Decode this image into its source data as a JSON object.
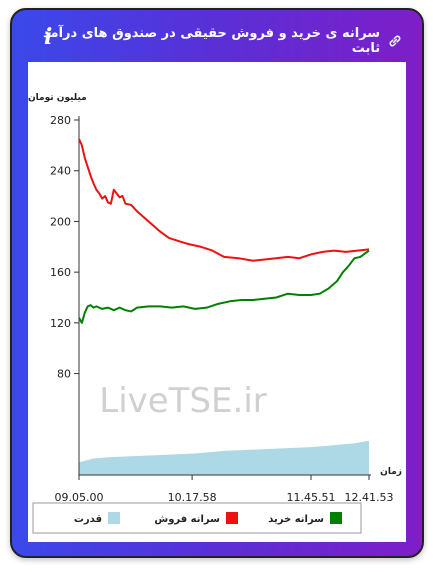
{
  "header": {
    "title": "سرانه ی خرید و فروش حقیقی در صندوق های درآمد ثابت",
    "info_icon": "i",
    "link_icon_name": "link-icon"
  },
  "watermark": "LiveTSE.ir",
  "chart_data": {
    "type": "line",
    "ylabel": "میلیون تومان",
    "xlabel": "زمان",
    "ylim": [
      0,
      280
    ],
    "y_ticks": [
      80,
      120,
      160,
      200,
      240,
      280
    ],
    "x_tick_labels": [
      "09.05.00",
      "10.17.58",
      "11.45.51",
      "12.41.53"
    ],
    "x_tick_positions": [
      0,
      0.39,
      0.8,
      1.0
    ],
    "grid": false,
    "legend_position": "bottom",
    "series": [
      {
        "name": "سرانه فروش",
        "color": "#ee1111",
        "kind": "line",
        "x": [
          0,
          0.01,
          0.02,
          0.03,
          0.04,
          0.05,
          0.06,
          0.07,
          0.08,
          0.09,
          0.1,
          0.11,
          0.12,
          0.13,
          0.14,
          0.15,
          0.16,
          0.18,
          0.2,
          0.22,
          0.25,
          0.28,
          0.31,
          0.35,
          0.38,
          0.42,
          0.46,
          0.5,
          0.55,
          0.6,
          0.64,
          0.68,
          0.72,
          0.76,
          0.8,
          0.84,
          0.88,
          0.92,
          0.96,
          1.0
        ],
        "values": [
          265,
          260,
          250,
          243,
          236,
          230,
          225,
          222,
          218,
          220,
          215,
          214,
          225,
          222,
          219,
          220,
          214,
          213,
          208,
          204,
          198,
          192,
          187,
          184,
          182,
          180,
          177,
          172,
          171,
          169,
          170,
          171,
          172,
          171,
          174,
          176,
          177,
          176,
          177,
          178
        ]
      },
      {
        "name": "سرانه خرید",
        "color": "#008000",
        "kind": "line",
        "x": [
          0,
          0.01,
          0.02,
          0.03,
          0.04,
          0.05,
          0.06,
          0.08,
          0.1,
          0.12,
          0.14,
          0.16,
          0.18,
          0.2,
          0.24,
          0.28,
          0.32,
          0.36,
          0.4,
          0.44,
          0.48,
          0.52,
          0.56,
          0.6,
          0.64,
          0.68,
          0.72,
          0.76,
          0.8,
          0.83,
          0.86,
          0.89,
          0.91,
          0.93,
          0.95,
          0.97,
          1.0
        ],
        "values": [
          124,
          120,
          128,
          133,
          134,
          132,
          133,
          131,
          132,
          130,
          132,
          130,
          129,
          132,
          133,
          133,
          132,
          133,
          131,
          132,
          135,
          137,
          138,
          138,
          139,
          140,
          143,
          142,
          142,
          143,
          147,
          153,
          160,
          165,
          171,
          172,
          177
        ]
      },
      {
        "name": "قدرت",
        "color": "#add8e6",
        "kind": "area",
        "x": [
          0,
          0.05,
          0.1,
          0.2,
          0.3,
          0.4,
          0.5,
          0.6,
          0.7,
          0.8,
          0.9,
          0.95,
          1.0
        ],
        "values": [
          10,
          13,
          14,
          15,
          16,
          17,
          19,
          20,
          21,
          22,
          24,
          25,
          27
        ]
      }
    ]
  }
}
